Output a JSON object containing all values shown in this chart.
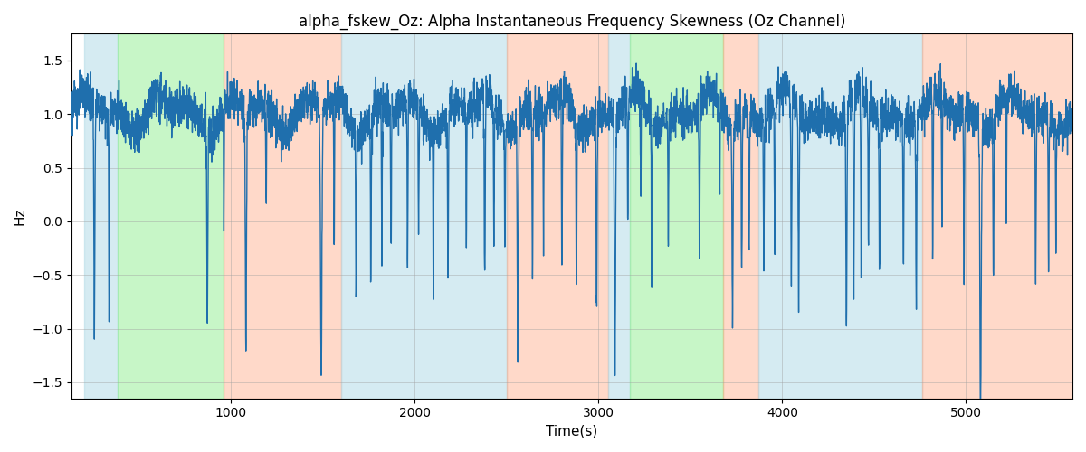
{
  "title": "alpha_fskew_Oz: Alpha Instantaneous Frequency Skewness (Oz Channel)",
  "xlabel": "Time(s)",
  "ylabel": "Hz",
  "ylim": [
    -1.65,
    1.75
  ],
  "xlim": [
    130,
    5580
  ],
  "bg_bands": [
    {
      "xmin": 200,
      "xmax": 380,
      "color": "#add8e6",
      "alpha": 0.5
    },
    {
      "xmin": 380,
      "xmax": 960,
      "color": "#90ee90",
      "alpha": 0.5
    },
    {
      "xmin": 960,
      "xmax": 1600,
      "color": "#ffa07a",
      "alpha": 0.4
    },
    {
      "xmin": 1600,
      "xmax": 2500,
      "color": "#add8e6",
      "alpha": 0.5
    },
    {
      "xmin": 2500,
      "xmax": 3050,
      "color": "#ffa07a",
      "alpha": 0.4
    },
    {
      "xmin": 3050,
      "xmax": 3170,
      "color": "#add8e6",
      "alpha": 0.5
    },
    {
      "xmin": 3170,
      "xmax": 3680,
      "color": "#90ee90",
      "alpha": 0.5
    },
    {
      "xmin": 3680,
      "xmax": 3870,
      "color": "#ffa07a",
      "alpha": 0.4
    },
    {
      "xmin": 3870,
      "xmax": 4760,
      "color": "#add8e6",
      "alpha": 0.5
    },
    {
      "xmin": 4760,
      "xmax": 5580,
      "color": "#ffa07a",
      "alpha": 0.4
    }
  ],
  "line_color": "#1f6fad",
  "line_width": 1.0,
  "grid_color": "#a0a0a0",
  "grid_alpha": 0.6,
  "title_fontsize": 12,
  "tick_fontsize": 10,
  "label_fontsize": 11
}
